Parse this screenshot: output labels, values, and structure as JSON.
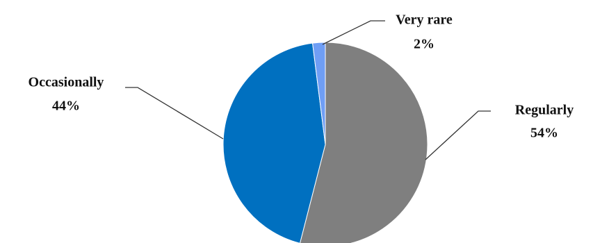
{
  "chart_data": {
    "type": "pie",
    "title": "",
    "slices": [
      {
        "label": "Regularly",
        "value": 54,
        "value_label": "54%",
        "color": "#7f7f7f"
      },
      {
        "label": "Occasionally",
        "value": 44,
        "value_label": "44%",
        "color": "#0070c0"
      },
      {
        "label": "Very rare",
        "value": 2,
        "value_label": "2%",
        "color": "#6f9ef5"
      }
    ],
    "start_angle": "12 o'clock",
    "direction": "clockwise",
    "legend": "none"
  }
}
